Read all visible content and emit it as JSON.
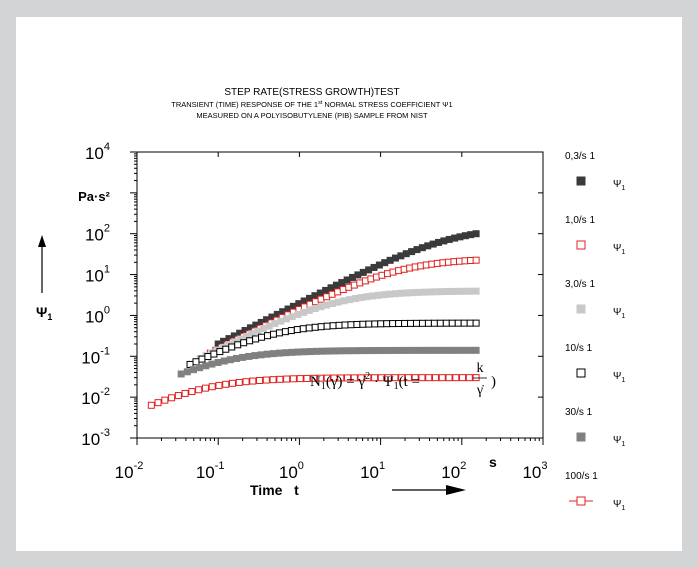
{
  "chart_data": {
    "type": "scatter",
    "title": "STEP RATE(STRESS GROWTH)TEST",
    "subtitle_1_prefix": "TRANSIENT (TIME) RESPONSE OF THE 1",
    "subtitle_1_super": "st",
    "subtitle_1_suffix": "NORMAL STRESS COEFFICIENT Ψ1",
    "subtitle_2": "MEASURED ON A POLYISOBUTYLENE (PIB) SAMPLE FROM NIST",
    "x_scale": "log",
    "y_scale": "log",
    "xlim": [
      0.01,
      1000
    ],
    "ylim": [
      0.001,
      10000
    ],
    "x_tick_labels": [
      {
        "base": "10",
        "exp": "-2"
      },
      {
        "base": "10",
        "exp": "-1"
      },
      {
        "base": "10",
        "exp": "0"
      },
      {
        "base": "10",
        "exp": "1"
      },
      {
        "base": "10",
        "exp": "2"
      },
      {
        "base": "10",
        "exp": "3"
      }
    ],
    "y_tick_labels": [
      {
        "base": "10",
        "exp": "-3"
      },
      {
        "base": "10",
        "exp": "-2"
      },
      {
        "base": "10",
        "exp": "-1"
      },
      {
        "base": "10",
        "exp": "0"
      },
      {
        "base": "10",
        "exp": "1"
      },
      {
        "base": "10",
        "exp": "2"
      },
      {
        "base": "10",
        "exp": "4"
      }
    ],
    "y_unit_label": "Pa·s²",
    "y_axis_symbol": "Ψ",
    "y_axis_symbol_sub": "1",
    "x_unit_label": "s",
    "xlabel": "Time   t",
    "equation": {
      "lhs": "N",
      "lhs_sub": "1",
      "lhs_arg": "(γ̇) = γ̇",
      "power": "2",
      "mid": " · Ψ",
      "mid_sub": "1",
      "rhs": "(t =",
      "frac_num": "k",
      "frac_den": "γ̇",
      "close": ")"
    },
    "legend_placement": "right",
    "series": [
      {
        "name": "0,3/s 1",
        "symbol": "Ψ",
        "symbol_sub": "1",
        "marker": "filled-square",
        "color": "#3a3a3a",
        "t0": 0.1,
        "y0": 0.2,
        "tmax": 150,
        "plateau": 150,
        "rise_exp": 1.0,
        "dip": 0
      },
      {
        "name": "1,0/s 1",
        "symbol": "Ψ",
        "symbol_sub": "1",
        "marker": "open-square",
        "color": "#e02020",
        "t0": 0.08,
        "y0": 0.12,
        "tmax": 150,
        "plateau": 25,
        "rise_exp": 1.0,
        "dip": 0
      },
      {
        "name": "3,0/s 1",
        "symbol": "Ψ",
        "symbol_sub": "1",
        "marker": "filled-square",
        "color": "#c8c8c8",
        "t0": 0.06,
        "y0": 0.09,
        "tmax": 150,
        "plateau": 4,
        "rise_exp": 1.0,
        "dip": 0
      },
      {
        "name": "10/s 1",
        "symbol": "Ψ",
        "symbol_sub": "1",
        "marker": "open-square",
        "color": "#000000",
        "t0": 0.045,
        "y0": 0.07,
        "tmax": 150,
        "plateau": 0.65,
        "rise_exp": 1.0,
        "dip": 0
      },
      {
        "name": "30/s 1",
        "symbol": "Ψ",
        "symbol_sub": "1",
        "marker": "filled-square",
        "color": "#808080",
        "t0": 0.035,
        "y0": 0.05,
        "tmax": 150,
        "plateau": 0.14,
        "rise_exp": 1.0,
        "dip": 0
      },
      {
        "name": "100/s 1",
        "symbol": "Ψ",
        "symbol_sub": "1",
        "marker": "line-open-square",
        "color": "#e02020",
        "t0": 0.015,
        "y0": 0.008,
        "tmax": 150,
        "plateau": 0.03,
        "rise_exp": 1.0,
        "dip": 0
      }
    ]
  }
}
